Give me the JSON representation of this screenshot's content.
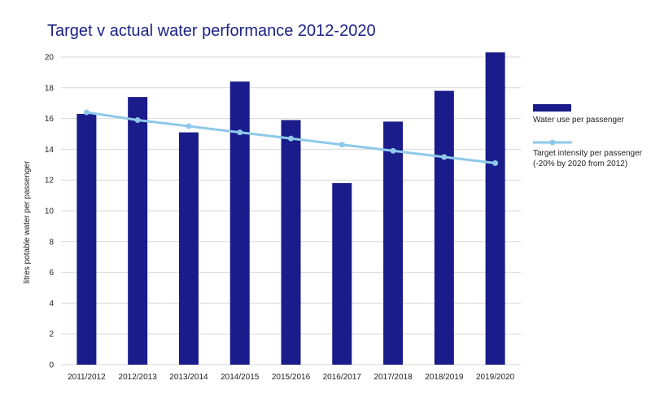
{
  "chart_data": {
    "type": "bar",
    "title": "Target v actual water performance 2012-2020",
    "xlabel": "",
    "ylabel": "litres potable water per passenger",
    "ylim": [
      0,
      20
    ],
    "yticks": [
      "0",
      "2",
      "4",
      "6",
      "8",
      "10",
      "12",
      "14",
      "16",
      "18",
      "20"
    ],
    "grid": true,
    "legend_position": "right",
    "categories": [
      "2011/2012",
      "2012/2013",
      "2013/2014",
      "2014/2015",
      "2015/2016",
      "2016/2017",
      "2017/2018",
      "2018/2019",
      "2019/2020"
    ],
    "series": [
      {
        "name": "Water use per passenger",
        "type": "bar",
        "color": "#191c8a",
        "values": [
          16.3,
          17.4,
          15.1,
          18.4,
          15.9,
          11.8,
          15.8,
          17.8,
          20.3
        ]
      },
      {
        "name": "Target intensity per passenger",
        "name_line2": "(-20% by 2020 from 2012)",
        "type": "line",
        "color": "#8ec9ea",
        "values": [
          16.4,
          15.9,
          15.5,
          15.1,
          14.7,
          14.3,
          13.9,
          13.5,
          13.1
        ]
      }
    ]
  }
}
